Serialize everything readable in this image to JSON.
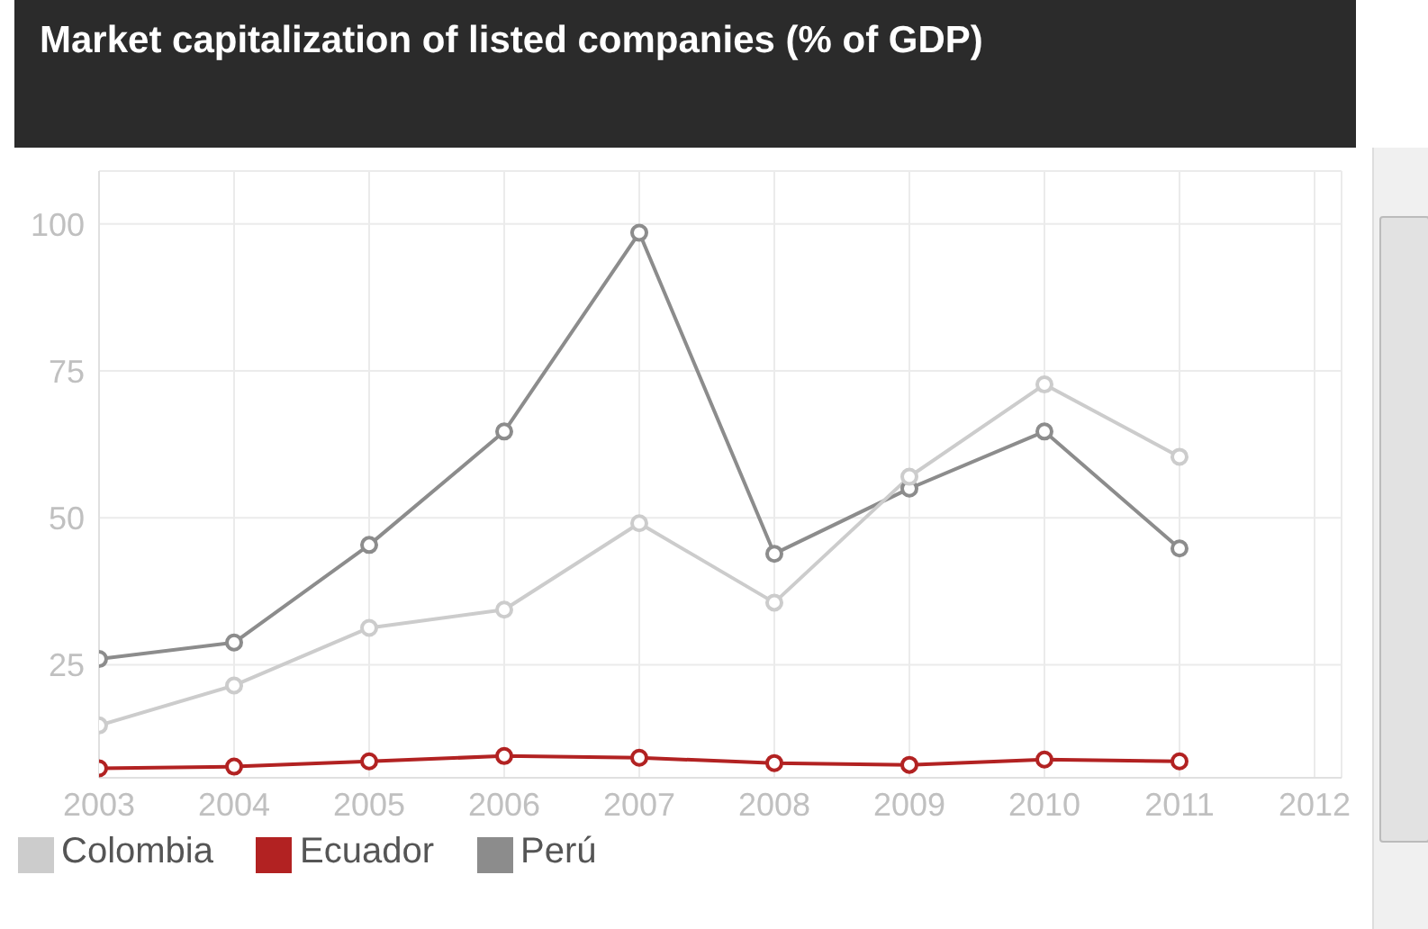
{
  "chart_data": {
    "type": "line",
    "title": "Market capitalization of listed companies (% of GDP)",
    "x": [
      2003,
      2004,
      2005,
      2006,
      2007,
      2008,
      2009,
      2010,
      2011
    ],
    "series": [
      {
        "name": "Ecuador",
        "color": "#b22222",
        "values": [
          7.4,
          7.7,
          8.6,
          9.5,
          9.2,
          8.3,
          8,
          8.9,
          8.6
        ]
      },
      {
        "name": "Perú",
        "color": "#8c8c8c",
        "values": [
          26,
          28.8,
          45.4,
          64.7,
          98.5,
          43.9,
          55,
          64.7,
          44.8
        ]
      },
      {
        "name": "Colombia",
        "color": "#cccccc",
        "values": [
          14.7,
          21.5,
          31.3,
          34.4,
          49.1,
          35.6,
          57,
          72.7,
          60.4
        ]
      }
    ],
    "xlim": [
      2003,
      2012.2
    ],
    "xticks": [
      2003,
      2004,
      2005,
      2006,
      2007,
      2008,
      2009,
      2010,
      2011,
      2012
    ],
    "ylim": [
      5.8,
      109
    ],
    "yticks": [
      25,
      50,
      75,
      100
    ],
    "grid": true,
    "legend": "bottom left",
    "marker": "circle",
    "line_style": "solid"
  }
}
